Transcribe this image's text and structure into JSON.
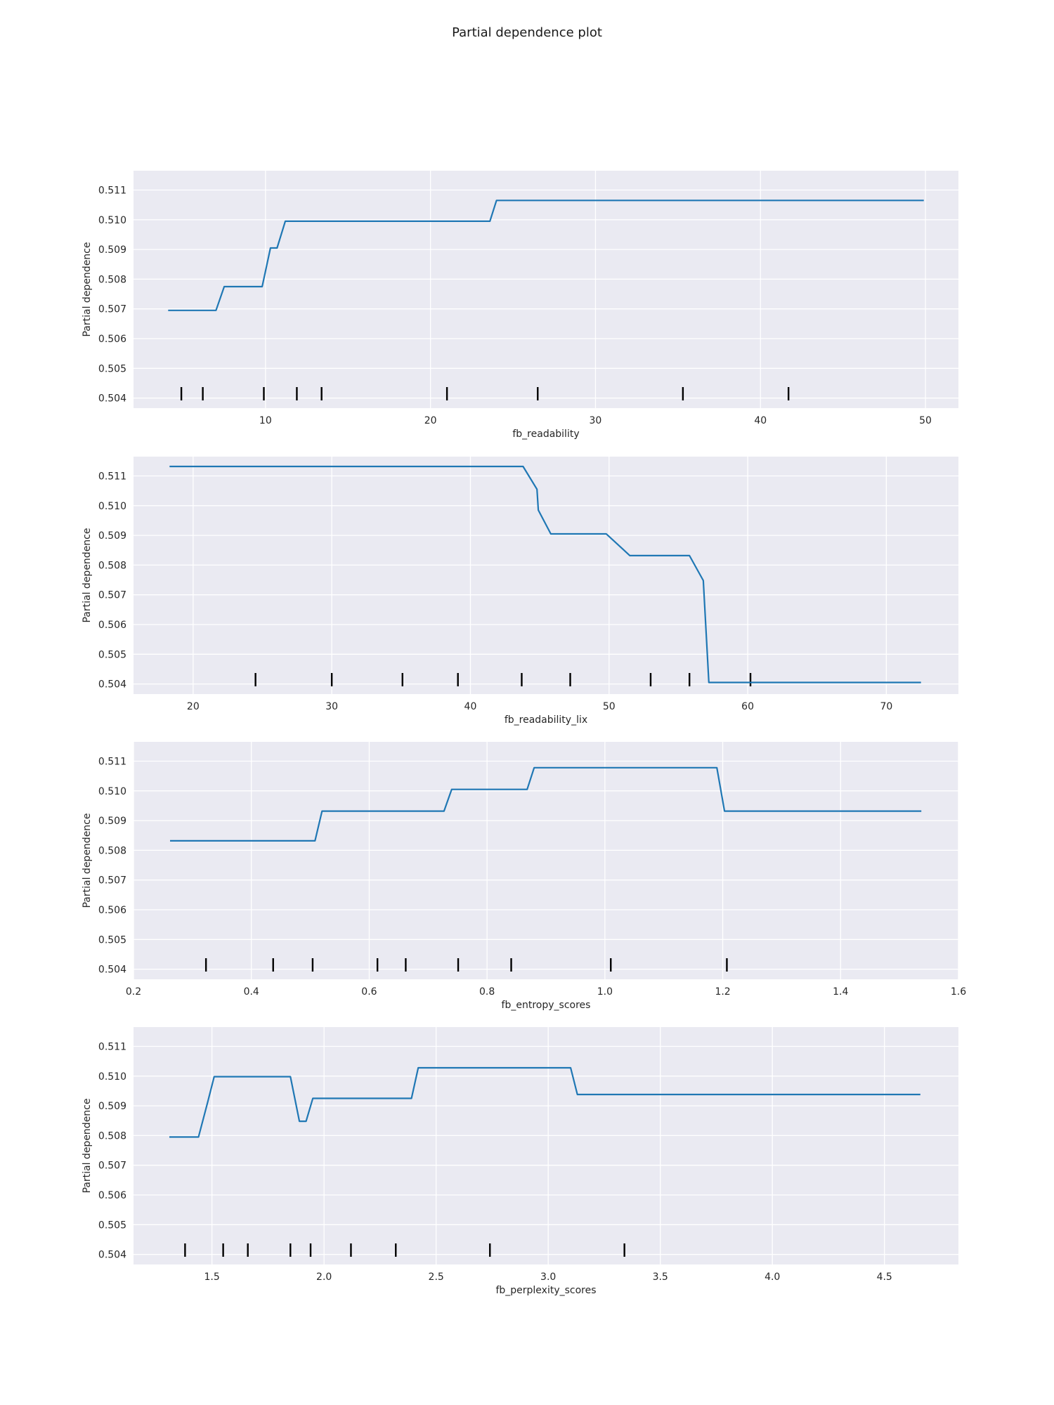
{
  "figure": {
    "title": "Partial dependence plot"
  },
  "style": {
    "panel_bg": "#eaeaf2",
    "grid": "#ffffff",
    "line": "#1f77b4",
    "rug": "#000000"
  },
  "chart_data": [
    {
      "type": "line",
      "xlabel": "fb_readability",
      "ylabel": "Partial dependence",
      "xlim": [
        2,
        52
      ],
      "ylim": [
        0.50366,
        0.51165
      ],
      "xticks": [
        10,
        20,
        30,
        40,
        50
      ],
      "xtick_labels": [
        "10",
        "20",
        "30",
        "40",
        "50"
      ],
      "yticks": [
        0.504,
        0.505,
        0.506,
        0.507,
        0.508,
        0.509,
        0.51,
        0.511
      ],
      "ytick_labels": [
        "0.504",
        "0.505",
        "0.506",
        "0.507",
        "0.508",
        "0.509",
        "0.510",
        "0.511"
      ],
      "grid": true,
      "series": [
        {
          "x": [
            4.1,
            7.0,
            7.5,
            9.8,
            10.3,
            10.7,
            11.2,
            23.6,
            24.0,
            49.9
          ],
          "y": [
            0.50695,
            0.50695,
            0.50775,
            0.50775,
            0.50905,
            0.50905,
            0.50995,
            0.50995,
            0.51065,
            0.51065
          ]
        }
      ],
      "rug": [
        4.9,
        6.2,
        9.9,
        11.9,
        13.4,
        21.0,
        26.5,
        35.3,
        41.7
      ]
    },
    {
      "type": "line",
      "xlabel": "fb_readability_lix",
      "ylabel": "Partial dependence",
      "xlim": [
        15.7,
        75.2
      ],
      "ylim": [
        0.50366,
        0.51165
      ],
      "xticks": [
        20,
        30,
        40,
        50,
        60,
        70
      ],
      "xtick_labels": [
        "20",
        "30",
        "40",
        "50",
        "60",
        "70"
      ],
      "yticks": [
        0.504,
        0.505,
        0.506,
        0.507,
        0.508,
        0.509,
        0.51,
        0.511
      ],
      "ytick_labels": [
        "0.504",
        "0.505",
        "0.506",
        "0.507",
        "0.508",
        "0.509",
        "0.510",
        "0.511"
      ],
      "grid": true,
      "series": [
        {
          "x": [
            18.3,
            43.8,
            44.8,
            44.9,
            45.8,
            49.8,
            51.5,
            55.8,
            56.8,
            57.2,
            72.5
          ],
          "y": [
            0.51132,
            0.51132,
            0.51055,
            0.50985,
            0.50905,
            0.50905,
            0.50832,
            0.50832,
            0.50748,
            0.50405,
            0.50405
          ]
        }
      ],
      "rug": [
        24.5,
        30.0,
        35.1,
        39.1,
        43.7,
        47.2,
        53.0,
        55.8,
        60.2
      ]
    },
    {
      "type": "line",
      "xlabel": "fb_entropy_scores",
      "ylabel": "Partial dependence",
      "xlim": [
        0.2,
        1.6
      ],
      "ylim": [
        0.50366,
        0.51165
      ],
      "xticks": [
        0.2,
        0.4,
        0.6,
        0.8,
        1.0,
        1.2,
        1.4,
        1.6
      ],
      "xtick_labels": [
        "0.2",
        "0.4",
        "0.6",
        "0.8",
        "1.0",
        "1.2",
        "1.4",
        "1.6"
      ],
      "yticks": [
        0.504,
        0.505,
        0.506,
        0.507,
        0.508,
        0.509,
        0.51,
        0.511
      ],
      "ytick_labels": [
        "0.504",
        "0.505",
        "0.506",
        "0.507",
        "0.508",
        "0.509",
        "0.510",
        "0.511"
      ],
      "grid": true,
      "series": [
        {
          "x": [
            0.262,
            0.508,
            0.52,
            0.727,
            0.74,
            0.868,
            0.88,
            1.19,
            1.203,
            1.537
          ],
          "y": [
            0.50832,
            0.50832,
            0.50932,
            0.50932,
            0.51005,
            0.51005,
            0.51078,
            0.51078,
            0.50932,
            0.50932
          ]
        }
      ],
      "rug": [
        0.323,
        0.437,
        0.504,
        0.614,
        0.662,
        0.751,
        0.841,
        1.01,
        1.207
      ]
    },
    {
      "type": "line",
      "xlabel": "fb_perplexity_scores",
      "ylabel": "Partial dependence",
      "xlim": [
        1.15,
        4.83
      ],
      "ylim": [
        0.50366,
        0.51165
      ],
      "xticks": [
        1.5,
        2.0,
        2.5,
        3.0,
        3.5,
        4.0,
        4.5
      ],
      "xtick_labels": [
        "1.5",
        "2.0",
        "2.5",
        "3.0",
        "3.5",
        "4.0",
        "4.5"
      ],
      "yticks": [
        0.504,
        0.505,
        0.506,
        0.507,
        0.508,
        0.509,
        0.51,
        0.511
      ],
      "ytick_labels": [
        "0.504",
        "0.505",
        "0.506",
        "0.507",
        "0.508",
        "0.509",
        "0.510",
        "0.511"
      ],
      "grid": true,
      "series": [
        {
          "x": [
            1.31,
            1.44,
            1.48,
            1.51,
            1.85,
            1.89,
            1.92,
            1.95,
            2.39,
            2.42,
            3.1,
            3.13,
            4.66
          ],
          "y": [
            0.50795,
            0.50795,
            0.5091,
            0.50998,
            0.50998,
            0.50848,
            0.50848,
            0.50925,
            0.50925,
            0.51028,
            0.51028,
            0.50938,
            0.50938
          ]
        }
      ],
      "rug": [
        1.38,
        1.55,
        1.66,
        1.85,
        1.94,
        2.12,
        2.32,
        2.74,
        3.34
      ]
    }
  ]
}
